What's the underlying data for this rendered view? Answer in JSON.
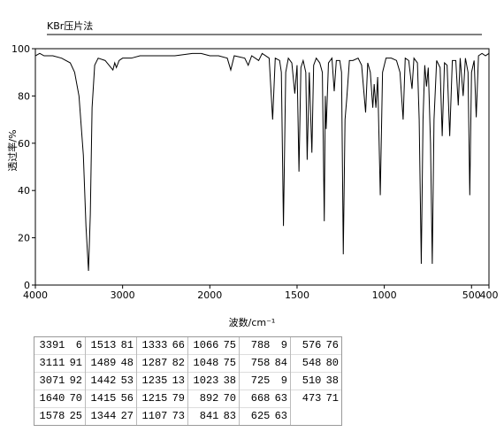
{
  "chart_data": {
    "type": "line",
    "title": "KBr压片法",
    "xlabel": "波数/cm⁻¹",
    "ylabel": "透过率/%",
    "xlim": [
      4000,
      400
    ],
    "ylim": [
      0,
      100
    ],
    "xticks": [
      4000,
      3000,
      2000,
      1500,
      1000,
      500,
      400
    ],
    "yticks": [
      0,
      20,
      40,
      60,
      80,
      100
    ],
    "series": [
      {
        "color": "#000000",
        "x": [
          4000,
          3950,
          3900,
          3800,
          3700,
          3600,
          3550,
          3500,
          3450,
          3420,
          3391,
          3370,
          3350,
          3320,
          3280,
          3200,
          3111,
          3090,
          3071,
          3040,
          3000,
          2900,
          2800,
          2600,
          2400,
          2200,
          2100,
          2000,
          1950,
          1900,
          1880,
          1860,
          1800,
          1780,
          1760,
          1720,
          1700,
          1660,
          1640,
          1625,
          1600,
          1590,
          1578,
          1565,
          1550,
          1530,
          1513,
          1500,
          1489,
          1478,
          1465,
          1450,
          1442,
          1430,
          1415,
          1405,
          1390,
          1370,
          1355,
          1344,
          1338,
          1333,
          1320,
          1300,
          1287,
          1275,
          1255,
          1245,
          1235,
          1225,
          1215,
          1200,
          1180,
          1150,
          1130,
          1107,
          1095,
          1080,
          1066,
          1058,
          1048,
          1038,
          1023,
          1010,
          990,
          960,
          930,
          910,
          892,
          880,
          860,
          841,
          830,
          810,
          800,
          788,
          778,
          768,
          758,
          748,
          735,
          725,
          715,
          700,
          680,
          668,
          655,
          640,
          625,
          610,
          590,
          576,
          565,
          548,
          535,
          520,
          510,
          500,
          485,
          473,
          460,
          440,
          420,
          400
        ],
        "values": [
          97,
          98,
          97,
          97,
          96,
          94,
          90,
          80,
          55,
          25,
          6,
          30,
          75,
          93,
          96,
          95,
          91,
          94,
          92,
          95,
          96,
          96,
          97,
          97,
          97,
          98,
          98,
          97,
          97,
          96,
          91,
          97,
          96,
          93,
          97,
          95,
          98,
          96,
          70,
          96,
          95,
          90,
          25,
          90,
          96,
          94,
          81,
          93,
          48,
          92,
          95,
          90,
          53,
          90,
          56,
          93,
          96,
          94,
          90,
          27,
          80,
          66,
          94,
          96,
          82,
          95,
          95,
          90,
          13,
          70,
          79,
          95,
          95,
          96,
          93,
          73,
          94,
          90,
          75,
          85,
          75,
          88,
          38,
          90,
          96,
          96,
          95,
          90,
          70,
          96,
          95,
          83,
          96,
          94,
          70,
          9,
          70,
          93,
          84,
          92,
          60,
          9,
          70,
          95,
          92,
          63,
          94,
          93,
          63,
          95,
          95,
          76,
          96,
          80,
          96,
          90,
          38,
          90,
          95,
          71,
          97,
          98,
          97,
          98
        ]
      }
    ]
  },
  "peak_table": {
    "columns": [
      [
        [
          3391,
          6
        ],
        [
          3111,
          91
        ],
        [
          3071,
          92
        ],
        [
          1640,
          70
        ],
        [
          1578,
          25
        ]
      ],
      [
        [
          1513,
          81
        ],
        [
          1489,
          48
        ],
        [
          1442,
          53
        ],
        [
          1415,
          56
        ],
        [
          1344,
          27
        ]
      ],
      [
        [
          1333,
          66
        ],
        [
          1287,
          82
        ],
        [
          1235,
          13
        ],
        [
          1215,
          79
        ],
        [
          1107,
          73
        ]
      ],
      [
        [
          1066,
          75
        ],
        [
          1048,
          75
        ],
        [
          1023,
          38
        ],
        [
          892,
          70
        ],
        [
          841,
          83
        ]
      ],
      [
        [
          788,
          9
        ],
        [
          758,
          84
        ],
        [
          725,
          9
        ],
        [
          668,
          63
        ],
        [
          625,
          63
        ]
      ],
      [
        [
          576,
          76
        ],
        [
          548,
          80
        ],
        [
          510,
          38
        ],
        [
          473,
          71
        ]
      ]
    ]
  }
}
